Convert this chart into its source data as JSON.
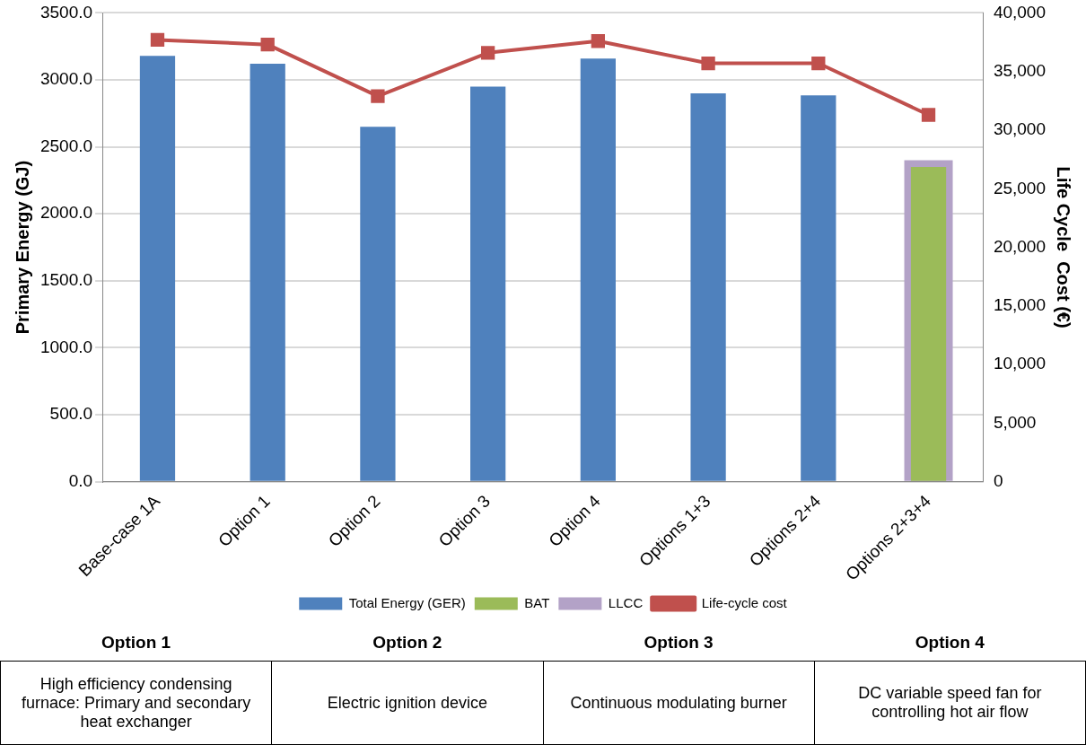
{
  "chart_data": {
    "type": "bar",
    "ylabel": "Primary Energy (GJ)",
    "y2label": "Life Cycle  Cost (€)",
    "categories": [
      "Base-case 1A",
      "Option 1",
      "Option 2",
      "Option 3",
      "Option 4",
      "Options 1+3",
      "Options 2+4",
      "Options 2+3+4"
    ],
    "series": [
      {
        "name": "Total Energy (GER)",
        "color": "#4f81bd",
        "values": [
          3180,
          3120,
          2650,
          2950,
          3160,
          2900,
          2885,
          null
        ]
      },
      {
        "name": "BAT",
        "color": "#9bbb59",
        "values": [
          null,
          null,
          null,
          null,
          null,
          null,
          null,
          2350
        ]
      },
      {
        "name": "LLCC",
        "color": "#b3a2c7",
        "values": [
          null,
          null,
          null,
          null,
          null,
          null,
          null,
          2400
        ]
      },
      {
        "name": "Life-cycle cost",
        "type": "line",
        "axis": "y2",
        "color": "#c0504d",
        "values": [
          37700,
          37300,
          32900,
          36600,
          37600,
          35700,
          35700,
          31300
        ]
      }
    ],
    "ylim": [
      0,
      3500
    ],
    "yticks": [
      {
        "value": 0,
        "label": "0.0"
      },
      {
        "value": 500,
        "label": "500.0"
      },
      {
        "value": 1000,
        "label": "1000.0"
      },
      {
        "value": 1500,
        "label": "1500.0"
      },
      {
        "value": 2000,
        "label": "2000.0"
      },
      {
        "value": 2500,
        "label": "2500.0"
      },
      {
        "value": 3000,
        "label": "3000.0"
      },
      {
        "value": 3500,
        "label": "3500.0"
      }
    ],
    "y2lim": [
      0,
      40000
    ],
    "y2ticks": [
      0,
      {
        "value": 5000,
        "label": "5,000"
      },
      {
        "value": 10000,
        "label": "10,000"
      },
      {
        "value": 15000,
        "label": "15,000"
      },
      {
        "value": 20000,
        "label": "20,000"
      },
      {
        "value": 25000,
        "label": "25,000"
      },
      {
        "value": 30000,
        "label": "30,000"
      },
      {
        "value": 35000,
        "label": "35,000"
      },
      {
        "value": 40000,
        "label": "40,000"
      }
    ],
    "grid": "y",
    "legend": "bottom",
    "marker": "square",
    "line_style": "solid",
    "annotations": [
      "Option 1",
      "Option 2",
      "Option 3",
      "Option 4",
      "High efficiency condensing furnace: Primary and secondary heat exchanger",
      "Electric ignition device",
      "Continuous modulating burner",
      "DC variable speed fan for controlling hot air flow"
    ]
  }
}
